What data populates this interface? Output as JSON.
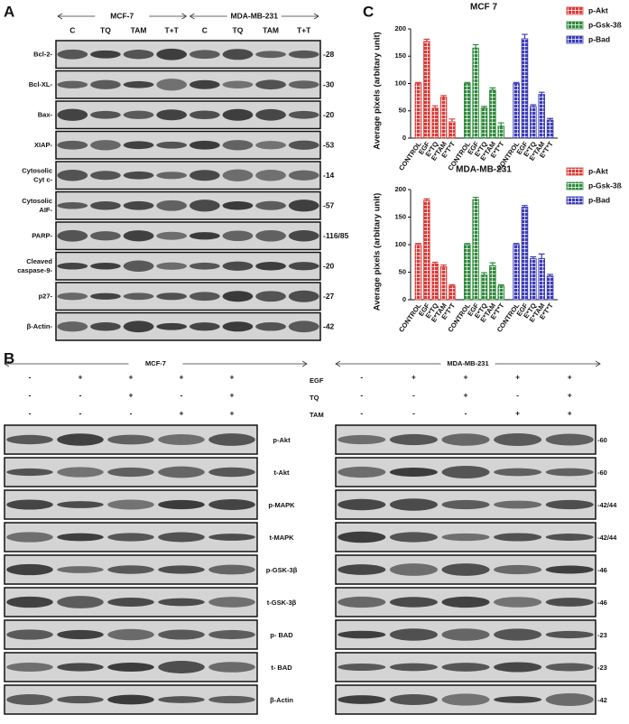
{
  "panel_a": {
    "letter": "A",
    "groups": [
      "MCF-7",
      "MDA-MB-231"
    ],
    "lanes": [
      "C",
      "TQ",
      "TAM",
      "T+T",
      "C",
      "TQ",
      "TAM",
      "T+T"
    ],
    "blots": [
      {
        "label": [
          "Bcl-2-"
        ],
        "mw": "-28"
      },
      {
        "label": [
          "Bcl-XL-"
        ],
        "mw": "-30"
      },
      {
        "label": [
          "Bax-"
        ],
        "mw": "-20"
      },
      {
        "label": [
          "XIAP-"
        ],
        "mw": "-53"
      },
      {
        "label": [
          "Cytosolic",
          "Cyt c-"
        ],
        "mw": "-14"
      },
      {
        "label": [
          "Cytosolic",
          "AIF-"
        ],
        "mw": "-57"
      },
      {
        "label": [
          "PARP-"
        ],
        "mw": "-116/85"
      },
      {
        "label": [
          "Cleaved",
          "caspase-9-"
        ],
        "mw": "-20"
      },
      {
        "label": [
          "p27-"
        ],
        "mw": "-27"
      },
      {
        "label": [
          "β-Actin-"
        ],
        "mw": "-42"
      }
    ]
  },
  "panel_b": {
    "letter": "B",
    "groups": [
      "MCF-7",
      "MDA-MB-231"
    ],
    "treatments": [
      {
        "name": "EGF",
        "signs": [
          "-",
          "+",
          "+",
          "+",
          "+"
        ]
      },
      {
        "name": "TQ",
        "signs": [
          "-",
          "-",
          "+",
          "-",
          "+"
        ]
      },
      {
        "name": "TAM",
        "signs": [
          "-",
          "-",
          "-",
          "+",
          "+"
        ]
      }
    ],
    "blots": [
      {
        "label": "p-Akt",
        "mw": "-60"
      },
      {
        "label": "t-Akt",
        "mw": "-60"
      },
      {
        "label": "p-MAPK",
        "mw": "-42/44"
      },
      {
        "label": "t-MAPK",
        "mw": "-42/44"
      },
      {
        "label": "p-GSK-3β",
        "mw": "-46"
      },
      {
        "label": "t-GSK-3β",
        "mw": "-46"
      },
      {
        "label": "p- BAD",
        "mw": "-23"
      },
      {
        "label": "t- BAD",
        "mw": "-23"
      },
      {
        "label": "β-Actin",
        "mw": "-42"
      }
    ]
  },
  "panel_c": {
    "letter": "C"
  },
  "chart_data": [
    {
      "type": "bar",
      "title": "MCF 7",
      "y_label": "Average pixels (arbitary unit)",
      "categories": [
        "CONTROL",
        "EGF",
        "E*TQ",
        "E*TAM",
        "E*T*T"
      ],
      "ylim": [
        0,
        200
      ],
      "yticks": [
        0,
        50,
        100,
        150,
        200
      ],
      "legend": "upper right",
      "series": [
        {
          "name": "p-Akt",
          "color": "#d93a36",
          "values": [
            100,
            177,
            55,
            75,
            30
          ],
          "errors": [
            2,
            4,
            4,
            3,
            5
          ]
        },
        {
          "name": "p-Gsk-3ß",
          "color": "#2f8a3c",
          "values": [
            100,
            165,
            55,
            88,
            22
          ],
          "errors": [
            2,
            6,
            3,
            4,
            6
          ]
        },
        {
          "name": "p-Bad",
          "color": "#3a3ab8",
          "values": [
            100,
            182,
            58,
            80,
            33
          ],
          "errors": [
            2,
            8,
            3,
            4,
            3
          ]
        }
      ]
    },
    {
      "type": "bar",
      "title": "MDA-MB-231",
      "y_label": "Average pixels (arbitary unit)",
      "categories": [
        "CONTROL",
        "EGF",
        "E*TQ",
        "E*TAM",
        "E*T*T"
      ],
      "ylim": [
        0,
        200
      ],
      "yticks": [
        0,
        50,
        100,
        150,
        200
      ],
      "legend": "upper right",
      "series": [
        {
          "name": "p-Akt",
          "color": "#d93a36",
          "values": [
            100,
            180,
            65,
            60,
            25
          ],
          "errors": [
            2,
            3,
            3,
            3,
            2
          ]
        },
        {
          "name": "p-Gsk-3ß",
          "color": "#2f8a3c",
          "values": [
            100,
            182,
            45,
            62,
            25
          ],
          "errors": [
            2,
            4,
            4,
            5,
            2
          ]
        },
        {
          "name": "p-Bad",
          "color": "#3a3ab8",
          "values": [
            100,
            168,
            75,
            75,
            43
          ],
          "errors": [
            2,
            3,
            3,
            8,
            3
          ]
        }
      ]
    }
  ]
}
